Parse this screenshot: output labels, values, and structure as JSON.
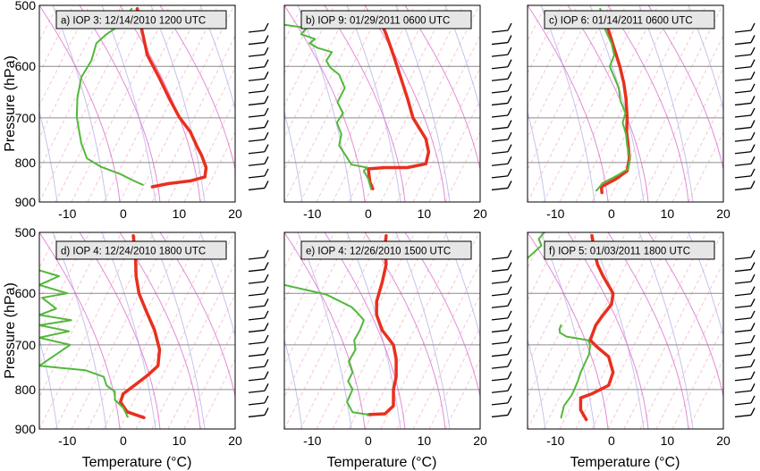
{
  "figure": {
    "ylabel": "Pressure (hPa)",
    "xlabel": "Temperature (°C)"
  },
  "chart_data": [
    {
      "type": "line",
      "title": "a) IOP 3: 12/14/2010 1200 UTC",
      "xlabel": "Temperature (°C)",
      "ylabel": "Pressure (hPa)",
      "xlim": [
        -15,
        20
      ],
      "ylim": [
        900,
        500
      ],
      "xticks": [
        -10,
        0,
        10,
        20
      ],
      "yticks": [
        500,
        600,
        700,
        800,
        900
      ],
      "y_scale": "log",
      "series": [
        {
          "color": "#e8301e",
          "x": [
            5.2,
            8,
            12,
            14.6,
            14.8,
            14,
            13.2,
            12,
            10,
            8.2,
            6.4,
            4.3,
            2.5
          ],
          "y": [
            860,
            852,
            845,
            835,
            812,
            783,
            763,
            730,
            698,
            660,
            620,
            580,
            505
          ]
        },
        {
          "color": "#52b83a",
          "x": [
            3.5,
            1.5,
            -0.5,
            -4,
            -6.5,
            -7.5,
            -8,
            -8.3,
            -8.2,
            -7.5,
            -5.7,
            -4.8,
            -3,
            -0.5,
            1.5
          ],
          "y": [
            855,
            842,
            828,
            810,
            790,
            755,
            720,
            698,
            660,
            620,
            590,
            560,
            545,
            530,
            505
          ]
        }
      ]
    },
    {
      "type": "line",
      "title": "b) IOP 9: 01/29/2011 0600 UTC",
      "xlabel": "Temperature (°C)",
      "ylabel": "Pressure (hPa)",
      "xlim": [
        -15,
        20
      ],
      "ylim": [
        900,
        500
      ],
      "xticks": [
        -10,
        0,
        10,
        20
      ],
      "yticks": [
        500,
        600,
        700,
        800,
        900
      ],
      "y_scale": "log",
      "series": [
        {
          "color": "#e8301e",
          "x": [
            0.8,
            0.3,
            0,
            3,
            7,
            10.3,
            10.8,
            10.3,
            8,
            7,
            5.8,
            4.5,
            3.2,
            1.5
          ],
          "y": [
            865,
            848,
            815,
            812,
            812,
            803,
            775,
            745,
            700,
            660,
            620,
            580,
            545,
            510
          ]
        },
        {
          "color": "#52b83a",
          "x": [
            0.5,
            0,
            -0.8,
            -0.2,
            -3,
            -4.2,
            -5.2,
            -4.8,
            -5.6,
            -4.5,
            -5.5,
            -4.2,
            -5.2,
            -6.8,
            -7.5,
            -6.5,
            -9,
            -10.5,
            -9.5,
            -12,
            -11,
            -15
          ],
          "y": [
            865,
            840,
            820,
            812,
            805,
            780,
            760,
            735,
            710,
            690,
            668,
            640,
            615,
            602,
            590,
            575,
            568,
            560,
            553,
            545,
            535,
            530
          ]
        }
      ]
    },
    {
      "type": "line",
      "title": "c) IOP 6: 01/14/2011 0600 UTC",
      "xlabel": "Temperature (°C)",
      "ylabel": "Pressure (hPa)",
      "xlim": [
        -15,
        20
      ],
      "ylim": [
        900,
        500
      ],
      "xticks": [
        -10,
        0,
        10,
        20
      ],
      "yticks": [
        500,
        600,
        700,
        800,
        900
      ],
      "y_scale": "log",
      "series": [
        {
          "color": "#e8301e",
          "x": [
            -1.7,
            -1.8,
            0.8,
            2.8,
            3.2,
            3,
            2.7,
            2.8,
            2.6,
            2.2,
            1.5,
            0.2,
            -1
          ],
          "y": [
            875,
            860,
            840,
            820,
            790,
            760,
            730,
            700,
            660,
            630,
            600,
            560,
            525
          ]
        },
        {
          "color": "#52b83a",
          "x": [
            -2.7,
            -1.5,
            1.2,
            3,
            3.3,
            2.8,
            2.6,
            2,
            2.5,
            1.6,
            1.3,
            -0.3,
            0.5,
            0,
            -1.5,
            -2
          ],
          "y": [
            870,
            850,
            830,
            815,
            790,
            760,
            735,
            710,
            690,
            665,
            640,
            600,
            580,
            560,
            530,
            505
          ]
        }
      ]
    },
    {
      "type": "line",
      "title": "d) IOP 4: 12/24/2010 1800 UTC",
      "xlabel": "Temperature (°C)",
      "ylabel": "Pressure (hPa)",
      "xlim": [
        -15,
        20
      ],
      "ylim": [
        900,
        500
      ],
      "xticks": [
        -10,
        0,
        10,
        20
      ],
      "yticks": [
        500,
        600,
        700,
        800,
        900
      ],
      "y_scale": "log",
      "series": [
        {
          "color": "#e8301e",
          "x": [
            3.7,
            0.7,
            -0.5,
            0,
            2,
            4.5,
            6.2,
            6.5,
            5.6,
            4,
            2.8,
            2.3,
            2.2,
            1.8
          ],
          "y": [
            870,
            855,
            830,
            810,
            790,
            765,
            745,
            710,
            670,
            630,
            600,
            570,
            540,
            505
          ]
        },
        {
          "color": "#52b83a",
          "x": [
            0.8,
            0,
            -1.5,
            -1.5,
            -3,
            -3.5,
            -6.8,
            -11,
            -15,
            -9.5,
            -15,
            -9.7,
            -15,
            -9.3,
            -15,
            -12,
            -14.5,
            -10,
            -15,
            -11.5,
            -15
          ],
          "y": [
            868,
            845,
            825,
            805,
            790,
            770,
            755,
            750,
            745,
            700,
            685,
            672,
            660,
            650,
            640,
            628,
            608,
            600,
            585,
            570,
            560
          ]
        }
      ]
    },
    {
      "type": "line",
      "title": "e) IOP 4: 12/26/2010 1500 UTC",
      "xlabel": "Temperature (°C)",
      "ylabel": "Pressure (hPa)",
      "xlim": [
        -15,
        20
      ],
      "ylim": [
        900,
        500
      ],
      "xticks": [
        -10,
        0,
        10,
        20
      ],
      "yticks": [
        500,
        600,
        700,
        800,
        900
      ],
      "y_scale": "log",
      "series": [
        {
          "color": "#e8301e",
          "x": [
            0,
            3,
            4.5,
            4.5,
            5,
            5,
            4.5,
            2.5,
            1.5,
            1.5,
            2.5,
            3.2,
            3,
            3.2
          ],
          "y": [
            862,
            860,
            840,
            800,
            770,
            730,
            700,
            670,
            640,
            615,
            580,
            550,
            520,
            505
          ]
        },
        {
          "color": "#52b83a",
          "x": [
            0,
            -2.8,
            -3.8,
            -2.8,
            -3.6,
            -2.8,
            -3.5,
            -2.3,
            -2.5,
            -1.5,
            -0.8,
            -2,
            -3,
            -5.5,
            -7.5,
            -15
          ],
          "y": [
            862,
            856,
            830,
            800,
            780,
            760,
            735,
            710,
            690,
            670,
            650,
            635,
            625,
            612,
            602,
            585
          ]
        }
      ]
    },
    {
      "type": "line",
      "title": "f) IOP 5: 01/03/2011 1800 UTC",
      "xlabel": "Temperature (°C)",
      "ylabel": "Pressure (hPa)",
      "xlim": [
        -15,
        20
      ],
      "ylim": [
        900,
        500
      ],
      "xticks": [
        -10,
        0,
        10,
        20
      ],
      "yticks": [
        500,
        600,
        700,
        800,
        900
      ],
      "y_scale": "log",
      "series": [
        {
          "color": "#e8301e",
          "x": [
            -4.5,
            -5.5,
            -5.5,
            -3.5,
            -0.5,
            0.3,
            -0.5,
            -2.5,
            -3.8,
            -2.8,
            -1.5,
            0,
            0.3,
            -1.5,
            -2.5,
            -3,
            -3.5
          ],
          "y": [
            875,
            850,
            820,
            810,
            790,
            760,
            725,
            705,
            690,
            660,
            640,
            620,
            600,
            570,
            550,
            530,
            505
          ]
        },
        {
          "color": "#52b83a",
          "x": [
            -9,
            -8.5,
            -7.2,
            -6.8,
            -6,
            -5.5,
            -4,
            -3.8,
            -4.2,
            -8,
            -9.2,
            -9.3,
            -9
          ],
          "y": [
            870,
            840,
            815,
            805,
            780,
            760,
            720,
            700,
            690,
            683,
            675,
            668,
            660
          ]
        },
        {
          "color": "#52b83a",
          "x": [
            -15,
            -12.5,
            -13,
            -12
          ],
          "y": [
            540,
            520,
            510,
            500
          ]
        }
      ]
    }
  ]
}
